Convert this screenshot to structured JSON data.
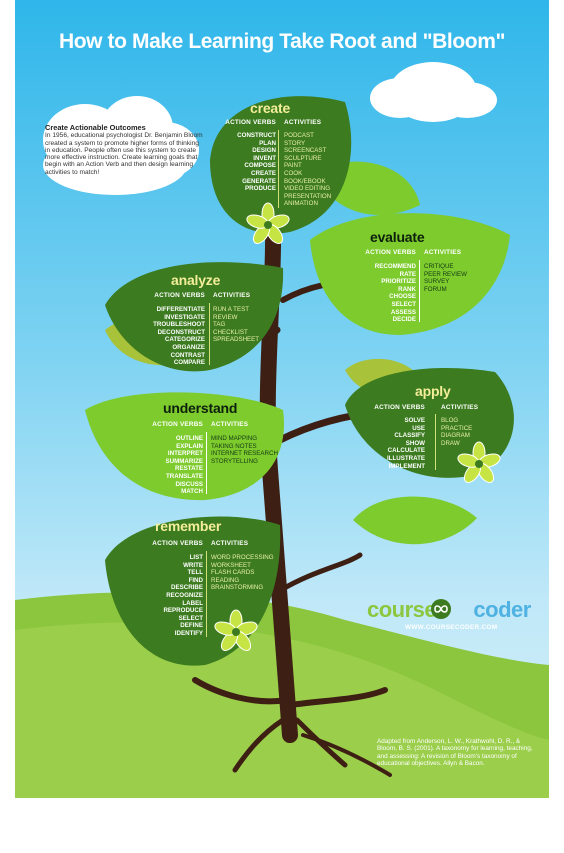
{
  "title": "How to Make Learning Take Root and \"Bloom\"",
  "intro": {
    "heading": "Create Actionable Outcomes",
    "body": "In 1956, educational psychologist Dr. Benjamin Bloom created a system to promote higher forms of thinking in education. People often use this system to create more effective instruction. Create learning goals that begin with an Action Verb and then design learning activities to match!"
  },
  "labels": {
    "verbs": "ACTION VERBS",
    "activities": "ACTIVITIES"
  },
  "levels": {
    "create": {
      "name": "create",
      "verbs": "CONSTRUCT\nPLAN\nDESIGN\nINVENT\nCOMPOSE\nCREATE\nGENERATE\nPRODUCE",
      "activities": "PODCAST\nSTORY\nSCREENCAST\nSCULPTURE\nPAINT\nCOOK\nBOOK/EBOOK\nVIDEO EDITING\nPRESENTATION\nANIMATION"
    },
    "evaluate": {
      "name": "evaluate",
      "verbs": "RECOMMEND\nRATE\nPRIORITIZE\nRANK\nCHOOSE\nSELECT\nASSESS\nDECIDE",
      "activities": "CRITIQUE\nPEER REVIEW\nSURVEY\nFORUM"
    },
    "analyze": {
      "name": "analyze",
      "verbs": "DIFFERENTIATE\nINVESTIGATE\nTROUBLESHOOT\nDECONSTRUCT\nCATEGORIZE\nORGANIZE\nCONTRAST\nCOMPARE",
      "activities": "RUN A TEST\nREVIEW\nTAG\nCHECKLIST\nSPREADSHEET"
    },
    "apply": {
      "name": "apply",
      "verbs": "SOLVE\nUSE\nCLASSIFY\nSHOW\nCALCULATE\nILLUSTRATE\nIMPLEMENT",
      "activities": "BLOG\nPRACTICE\nDIAGRAM\nDRAW"
    },
    "understand": {
      "name": "understand",
      "verbs": "OUTLINE\nEXPLAIN\nINTERPRET\nSUMMARIZE\nRESTATE\nTRANSLATE\nDISCUSS\nMATCH",
      "activities": "MIND MAPPING\nTAKING NOTES\nINTERNET RESEARCH\nSTORYTELLING"
    },
    "remember": {
      "name": "remember",
      "verbs": "LIST\nWRITE\nTELL\nFIND\nDESCRIBE\nRECOGNIZE\nLABEL\nREPRODUCE\nSELECT\nDEFINE\nIDENTIFY",
      "activities": "WORD PROCESSING\nWORKSHEET\nFLASH CARDS\nREADING\nBRAINSTORMING"
    }
  },
  "brand": {
    "course": "course",
    "coder": "coder",
    "url": "WWW.COURSECODER.COM"
  },
  "citation": "Adapted from Anderson, L. W., Krathwohl, D. R., & Bloom, B. S. (2001). A taxonomy for learning, teaching, and assessing: A revision of Bloom's taxonomy of educational objectives. Allyn & Bacon.",
  "colors": {
    "sky": "#2fb6ea",
    "dark_leaf": "#3c7b1f",
    "light_leaf": "#7ecb2e",
    "olive_leaf": "#a8c23a",
    "trunk": "#3d1f14",
    "grass": "#8cc63f",
    "flower": "#c6e544"
  }
}
